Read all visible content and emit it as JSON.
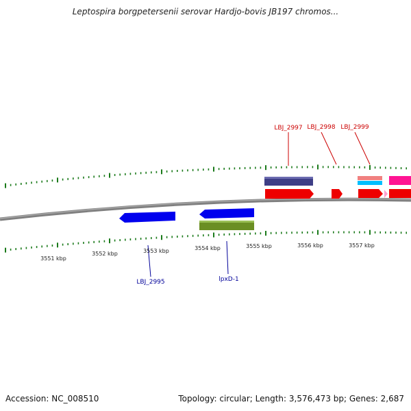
{
  "title": "Leptospira borgpetersenii serovar Hardjo-bovis JB197 chromos...",
  "footer": {
    "accession": "Accession: NC_008510",
    "summary": "Topology: circular; Length: 3,576,473 bp; Genes: 2,687"
  },
  "ruler_labels": [
    "3551 kbp",
    "3552 kbp",
    "3553 kbp",
    "3554 kbp",
    "3555 kbp",
    "3556 kbp",
    "3557 kbp"
  ],
  "gene_labels": [
    {
      "text": "LBJ_2997",
      "color": "#cc0000"
    },
    {
      "text": "LBJ_2998",
      "color": "#cc0000"
    },
    {
      "text": "LBJ_2999",
      "color": "#cc0000"
    },
    {
      "text": "LBJ_2995",
      "color": "#000099"
    },
    {
      "text": "lpxD-1",
      "color": "#000099"
    }
  ],
  "colors": {
    "backbone": "#808080",
    "ticks": "#1a7a1a",
    "forward_gene": "#ee0000",
    "reverse_gene": "#0000ee",
    "navy_feature": "#3e3e86",
    "olive_feature": "#6b8e23",
    "pink_feature": "#f08080",
    "cyan_feature": "#00bfff",
    "magenta_feature": "#ff1493"
  }
}
